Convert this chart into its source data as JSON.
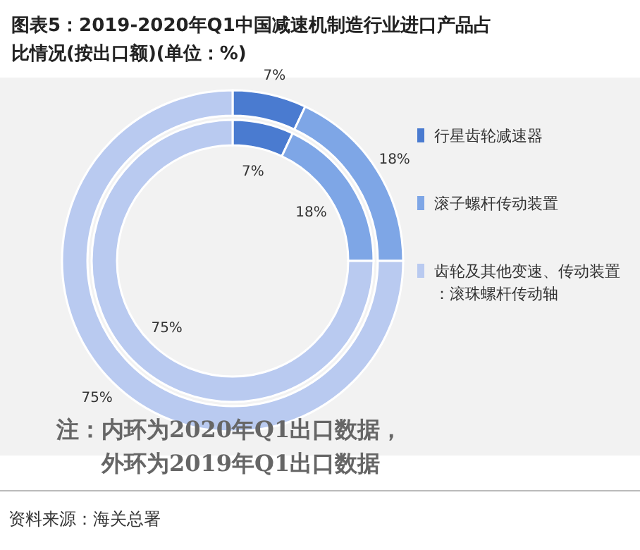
{
  "chart_data": {
    "type": "donut",
    "title": "图表5：2019-2020年Q1中国减速机制造行业进口产品占比情况(按出口额)(单位：%)",
    "categories": [
      "行星齿轮减速器",
      "滚子螺杆传动装置",
      "齿轮及其他变速、传动装置：滚珠螺杆传动轴"
    ],
    "colors": [
      "#4a7bd0",
      "#7ea6e6",
      "#b9caf0"
    ],
    "series": [
      {
        "values": [
          7,
          18,
          75
        ],
        "value_labels": [
          "7%",
          "18%",
          "75%"
        ]
      },
      {
        "values": [
          7,
          18,
          75
        ],
        "value_labels": [
          "7%",
          "18%",
          "75%"
        ]
      }
    ],
    "legend": "right",
    "annotations": [
      "注：内环为2020年Q1出口数据，",
      "外环为2019年Q1出口数据",
      "资料来源：海关总署"
    ]
  }
}
